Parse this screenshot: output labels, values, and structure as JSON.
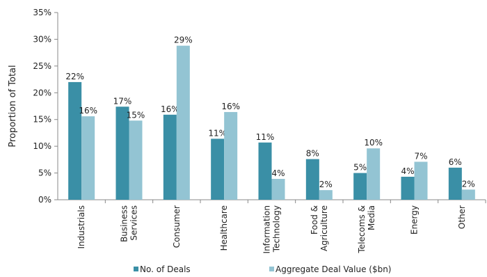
{
  "chart_data": {
    "type": "bar",
    "ylabel": "Proportion of Total",
    "ylim": [
      0,
      35
    ],
    "yticks": [
      "0%",
      "5%",
      "10%",
      "15%",
      "20%",
      "25%",
      "30%",
      "35%"
    ],
    "categories": [
      [
        "Industrials"
      ],
      [
        "Business",
        "Services"
      ],
      [
        "Consumer"
      ],
      [
        "Healthcare"
      ],
      [
        "Information",
        "Technology"
      ],
      [
        "Food &",
        "Agriculture"
      ],
      [
        "Telecoms &",
        "Media"
      ],
      [
        "Energy"
      ],
      [
        "Other"
      ]
    ],
    "series": [
      {
        "name": "No. of Deals",
        "color": "#3a8fa6",
        "values": [
          22,
          17.4,
          15.9,
          11.4,
          10.7,
          7.6,
          5,
          4.3,
          6
        ],
        "labels": [
          "22%",
          "17%",
          "16%",
          "11%",
          "11%",
          "8%",
          "5%",
          "4%",
          "6%"
        ]
      },
      {
        "name": "Aggregate Deal Value ($bn)",
        "color": "#93c4d3",
        "values": [
          15.6,
          14.8,
          28.8,
          16.4,
          3.9,
          1.8,
          9.6,
          7.1,
          1.9
        ],
        "labels": [
          "16%",
          "15%",
          "29%",
          "16%",
          "4%",
          "2%",
          "10%",
          "7%",
          "2%"
        ]
      }
    ],
    "grid": false,
    "legend": "bottom"
  }
}
